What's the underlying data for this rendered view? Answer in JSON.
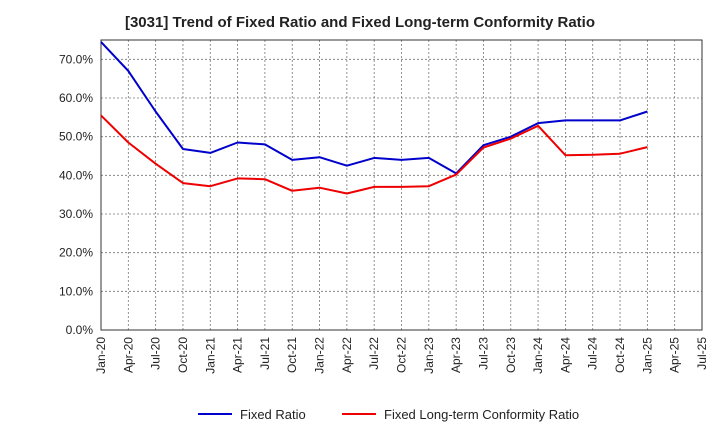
{
  "title": "[3031]  Trend of Fixed Ratio and Fixed Long-term Conformity Ratio",
  "chart_data": {
    "type": "line",
    "title": "[3031]  Trend of Fixed Ratio and Fixed Long-term Conformity Ratio",
    "x": [
      "Jan-20",
      "Apr-20",
      "Jul-20",
      "Oct-20",
      "Jan-21",
      "Apr-21",
      "Jul-21",
      "Oct-21",
      "Jan-22",
      "Apr-22",
      "Jul-22",
      "Oct-22",
      "Jan-23",
      "Apr-23",
      "Jul-23",
      "Oct-23",
      "Jan-24",
      "Apr-24",
      "Jul-24",
      "Oct-24",
      "Jan-25",
      "Apr-25"
    ],
    "x_ticks": [
      "Jan-20",
      "Apr-20",
      "Jul-20",
      "Oct-20",
      "Jan-21",
      "Apr-21",
      "Jul-21",
      "Oct-21",
      "Jan-22",
      "Apr-22",
      "Jul-22",
      "Oct-22",
      "Jan-23",
      "Apr-23",
      "Jul-23",
      "Oct-23",
      "Jan-24",
      "Apr-24",
      "Jul-24",
      "Oct-24",
      "Jan-25",
      "Apr-25",
      "Jul-25"
    ],
    "y_ticks": [
      "0.0%",
      "10.0%",
      "20.0%",
      "30.0%",
      "40.0%",
      "50.0%",
      "60.0%",
      "70.0%"
    ],
    "ylim": [
      0,
      75
    ],
    "series": [
      {
        "name": "Fixed Ratio",
        "color": "#0000cc",
        "values": [
          74.5,
          67.0,
          56.5,
          46.8,
          45.8,
          48.5,
          48.0,
          44.0,
          44.7,
          42.5,
          44.5,
          44.0,
          44.5,
          40.5,
          47.8,
          50.0,
          53.5,
          54.2,
          54.2,
          54.2,
          56.5,
          null
        ]
      },
      {
        "name": "Fixed Long-term Conformity Ratio",
        "color": "#ee0000",
        "values": [
          55.5,
          48.5,
          43.0,
          38.0,
          37.2,
          39.2,
          39.0,
          36.0,
          36.8,
          35.3,
          37.0,
          37.0,
          37.2,
          40.2,
          47.2,
          49.5,
          52.8,
          45.2,
          45.3,
          45.6,
          47.3,
          null
        ]
      }
    ],
    "grid": true,
    "legend_position": "bottom"
  }
}
